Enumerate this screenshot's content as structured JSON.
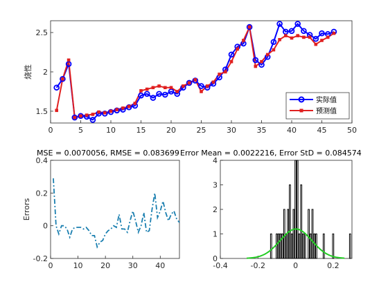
{
  "chart_data": [
    {
      "type": "line",
      "title": "",
      "xlabel": "",
      "ylabel": "烧性",
      "xlim": [
        0,
        50
      ],
      "ylim": [
        1.35,
        2.65
      ],
      "xticks": [
        0,
        5,
        10,
        15,
        20,
        25,
        30,
        35,
        40,
        45,
        50
      ],
      "yticks": [
        1.5,
        2,
        2.5
      ],
      "legend_position": "bottom-right",
      "x": [
        1,
        2,
        3,
        4,
        5,
        6,
        7,
        8,
        9,
        10,
        11,
        12,
        13,
        14,
        15,
        16,
        17,
        18,
        19,
        20,
        21,
        22,
        23,
        24,
        25,
        26,
        27,
        28,
        29,
        30,
        31,
        32,
        33,
        34,
        35,
        36,
        37,
        38,
        39,
        40,
        41,
        42,
        43,
        44,
        45,
        46,
        47
      ],
      "series": [
        {
          "name": "实际值",
          "color": "#0000ff",
          "marker": "circle",
          "values": [
            1.8,
            1.91,
            2.1,
            1.42,
            1.44,
            1.43,
            1.39,
            1.47,
            1.47,
            1.49,
            1.51,
            1.52,
            1.55,
            1.57,
            1.7,
            1.72,
            1.67,
            1.72,
            1.71,
            1.75,
            1.72,
            1.8,
            1.86,
            1.89,
            1.82,
            1.8,
            1.85,
            1.93,
            2.03,
            2.22,
            2.32,
            2.36,
            2.57,
            2.15,
            2.09,
            2.19,
            2.38,
            2.61,
            2.51,
            2.52,
            2.61,
            2.52,
            2.47,
            2.42,
            2.49,
            2.48,
            2.51
          ]
        },
        {
          "name": "预测值",
          "color": "#e02020",
          "marker": "square",
          "values": [
            1.51,
            1.91,
            2.15,
            1.42,
            1.44,
            1.45,
            1.46,
            1.49,
            1.48,
            1.5,
            1.52,
            1.54,
            1.56,
            1.6,
            1.76,
            1.78,
            1.8,
            1.82,
            1.8,
            1.8,
            1.75,
            1.82,
            1.86,
            1.9,
            1.75,
            1.82,
            1.87,
            1.97,
            2.0,
            2.13,
            2.29,
            2.4,
            2.57,
            2.07,
            2.13,
            2.22,
            2.28,
            2.41,
            2.46,
            2.43,
            2.46,
            2.44,
            2.44,
            2.35,
            2.4,
            2.44,
            2.49
          ]
        }
      ]
    },
    {
      "type": "line",
      "title": "MSE = 0.0070056, RMSE = 0.083699",
      "xlabel": "",
      "ylabel": "Errors",
      "xlim": [
        0,
        47
      ],
      "ylim": [
        -0.2,
        0.4
      ],
      "xticks": [
        0,
        10,
        20,
        30,
        40
      ],
      "yticks": [
        -0.2,
        0,
        0.2,
        0.4
      ],
      "x": [
        1,
        2,
        3,
        4,
        5,
        6,
        7,
        8,
        9,
        10,
        11,
        12,
        13,
        14,
        15,
        16,
        17,
        18,
        19,
        20,
        21,
        22,
        23,
        24,
        25,
        26,
        27,
        28,
        29,
        30,
        31,
        32,
        33,
        34,
        35,
        36,
        37,
        38,
        39,
        40,
        41,
        42,
        43,
        44,
        45,
        46,
        47
      ],
      "series": [
        {
          "color": "#1a7fb0",
          "line_style": "dash-dot",
          "values": [
            0.29,
            0.0,
            -0.05,
            0.0,
            0.0,
            -0.02,
            -0.07,
            -0.02,
            -0.01,
            -0.01,
            -0.01,
            -0.02,
            -0.01,
            -0.03,
            -0.06,
            -0.06,
            -0.13,
            -0.1,
            -0.09,
            -0.05,
            -0.03,
            -0.02,
            0.0,
            -0.01,
            0.07,
            -0.02,
            -0.02,
            -0.04,
            0.03,
            0.09,
            0.03,
            -0.04,
            0.0,
            0.08,
            -0.04,
            -0.03,
            0.1,
            0.2,
            0.05,
            0.09,
            0.15,
            0.08,
            0.03,
            0.07,
            0.09,
            0.04,
            0.02
          ]
        }
      ]
    },
    {
      "type": "bar",
      "subtype": "histogram",
      "title": "Error Mean = 0.0022216, Error StD = 0.084574",
      "xlabel": "",
      "ylabel": "",
      "xlim": [
        -0.4,
        0.3
      ],
      "ylim": [
        0,
        4
      ],
      "xticks": [
        -0.4,
        -0.2,
        0,
        0.2
      ],
      "yticks": [
        0,
        1,
        2,
        3,
        4
      ],
      "bin_width": 0.0065,
      "bins": [
        {
          "x": -0.13,
          "count": 1
        },
        {
          "x": -0.1,
          "count": 1
        },
        {
          "x": -0.09,
          "count": 1
        },
        {
          "x": -0.08,
          "count": 1
        },
        {
          "x": -0.07,
          "count": 1
        },
        {
          "x": -0.06,
          "count": 2
        },
        {
          "x": -0.05,
          "count": 1
        },
        {
          "x": -0.04,
          "count": 2
        },
        {
          "x": -0.03,
          "count": 3
        },
        {
          "x": -0.02,
          "count": 1
        },
        {
          "x": -0.01,
          "count": 2
        },
        {
          "x": 0.0,
          "count": 4
        },
        {
          "x": 0.01,
          "count": 4
        },
        {
          "x": 0.02,
          "count": 1
        },
        {
          "x": 0.03,
          "count": 3
        },
        {
          "x": 0.04,
          "count": 1
        },
        {
          "x": 0.05,
          "count": 1
        },
        {
          "x": 0.07,
          "count": 2
        },
        {
          "x": 0.08,
          "count": 1
        },
        {
          "x": 0.09,
          "count": 2
        },
        {
          "x": 0.1,
          "count": 1
        },
        {
          "x": 0.11,
          "count": 1
        },
        {
          "x": 0.15,
          "count": 1
        },
        {
          "x": 0.2,
          "count": 1
        },
        {
          "x": 0.29,
          "count": 1
        }
      ],
      "fit_curve": {
        "type": "normal",
        "mean": 0.0022216,
        "std": 0.084574,
        "peak_count": 1.2,
        "color": "#22cc22"
      },
      "bar_color": "#7a2a3a"
    }
  ]
}
